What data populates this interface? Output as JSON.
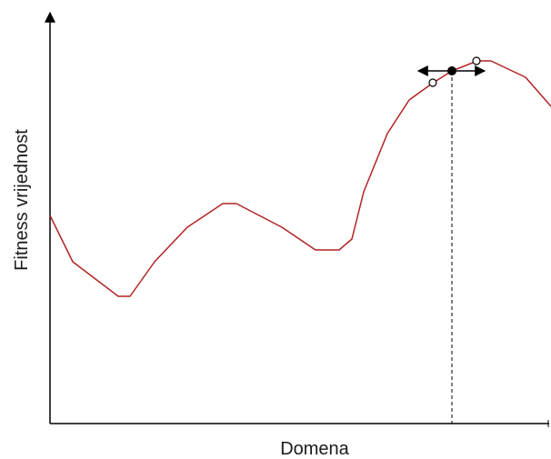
{
  "diagram": {
    "xlabel": "Domena",
    "ylabel": "Fitness vrijednost",
    "curve_color": "#b22222",
    "axis_color": "#000000",
    "current_point_color": "#000000",
    "neighbor_point_fill": "#ffffff",
    "current_point_x_fraction": 0.804,
    "neighbor_left_x_fraction": 0.765,
    "neighbor_right_x_fraction": 0.852
  }
}
